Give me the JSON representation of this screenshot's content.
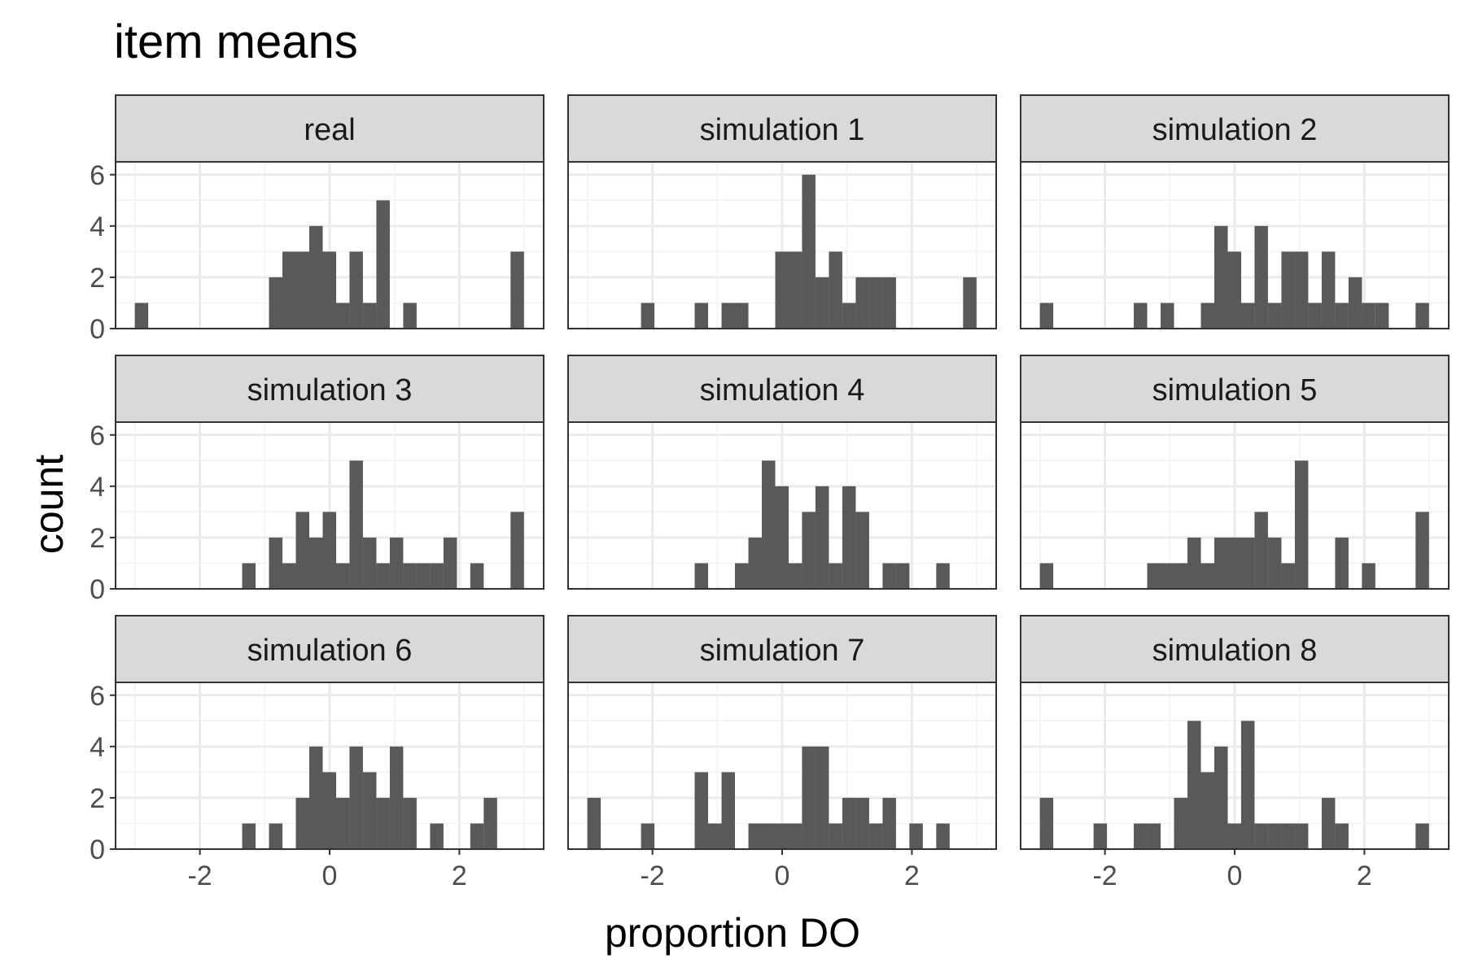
{
  "chart_data": {
    "type": "bar",
    "title": "item means",
    "xlabel": "proportion DO",
    "ylabel": "count",
    "xlim": [
      -3.3,
      3.3
    ],
    "ylim": [
      0,
      6.5
    ],
    "x_ticks": [
      -2,
      0,
      2
    ],
    "x_tick_labels": [
      "-2",
      "0",
      "2"
    ],
    "y_ticks": [
      0,
      2,
      4,
      6
    ],
    "y_tick_labels": [
      "0",
      "2",
      "4",
      "6"
    ],
    "grid": true,
    "bar_color": "#595959",
    "strip_color": "#d9d9d9",
    "bin_width": 0.207,
    "bin_centers": [
      -2.9,
      -2.693,
      -2.486,
      -2.279,
      -2.072,
      -1.866,
      -1.659,
      -1.452,
      -1.245,
      -1.038,
      -0.831,
      -0.624,
      -0.417,
      -0.21,
      -0.003,
      0.203,
      0.41,
      0.617,
      0.824,
      1.031,
      1.238,
      1.445,
      1.652,
      1.859,
      2.065,
      2.272,
      2.479,
      2.686,
      2.893
    ],
    "panels": [
      {
        "label": "real",
        "counts": [
          1,
          0,
          0,
          0,
          0,
          0,
          0,
          0,
          0,
          0,
          2,
          3,
          3,
          4,
          3,
          1,
          3,
          1,
          5,
          0,
          1,
          0,
          0,
          0,
          0,
          0,
          0,
          0,
          3
        ]
      },
      {
        "label": "simulation 1",
        "counts": [
          0,
          0,
          0,
          0,
          1,
          0,
          0,
          0,
          1,
          0,
          1,
          1,
          0,
          0,
          3,
          3,
          6,
          2,
          3,
          1,
          2,
          2,
          2,
          0,
          0,
          0,
          0,
          0,
          2
        ]
      },
      {
        "label": "simulation 2",
        "counts": [
          1,
          0,
          0,
          0,
          0,
          0,
          0,
          1,
          0,
          1,
          0,
          0,
          1,
          4,
          3,
          1,
          4,
          1,
          3,
          3,
          1,
          3,
          1,
          2,
          1,
          1,
          0,
          0,
          1
        ]
      },
      {
        "label": "simulation 3",
        "counts": [
          0,
          0,
          0,
          0,
          0,
          0,
          0,
          0,
          1,
          0,
          2,
          1,
          3,
          2,
          3,
          1,
          5,
          2,
          1,
          2,
          1,
          1,
          1,
          2,
          0,
          1,
          0,
          0,
          3
        ]
      },
      {
        "label": "simulation 4",
        "counts": [
          0,
          0,
          0,
          0,
          0,
          0,
          0,
          0,
          1,
          0,
          0,
          1,
          2,
          5,
          4,
          1,
          3,
          4,
          1,
          4,
          3,
          0,
          1,
          1,
          0,
          0,
          1,
          0,
          0
        ]
      },
      {
        "label": "simulation 5",
        "counts": [
          1,
          0,
          0,
          0,
          0,
          0,
          0,
          0,
          1,
          1,
          1,
          2,
          1,
          2,
          2,
          2,
          3,
          2,
          1,
          5,
          0,
          0,
          2,
          0,
          1,
          0,
          0,
          0,
          3
        ]
      },
      {
        "label": "simulation 6",
        "counts": [
          0,
          0,
          0,
          0,
          0,
          0,
          0,
          0,
          1,
          0,
          1,
          0,
          2,
          4,
          3,
          2,
          4,
          3,
          2,
          4,
          2,
          0,
          1,
          0,
          0,
          1,
          2,
          0,
          0
        ]
      },
      {
        "label": "simulation 7",
        "counts": [
          2,
          0,
          0,
          0,
          1,
          0,
          0,
          0,
          3,
          1,
          3,
          0,
          1,
          1,
          1,
          1,
          4,
          4,
          1,
          2,
          2,
          1,
          2,
          0,
          1,
          0,
          1,
          0,
          0
        ]
      },
      {
        "label": "simulation 8",
        "counts": [
          2,
          0,
          0,
          0,
          1,
          0,
          0,
          1,
          1,
          0,
          2,
          5,
          3,
          4,
          1,
          5,
          1,
          1,
          1,
          1,
          0,
          2,
          1,
          0,
          0,
          0,
          0,
          0,
          1
        ]
      }
    ]
  }
}
